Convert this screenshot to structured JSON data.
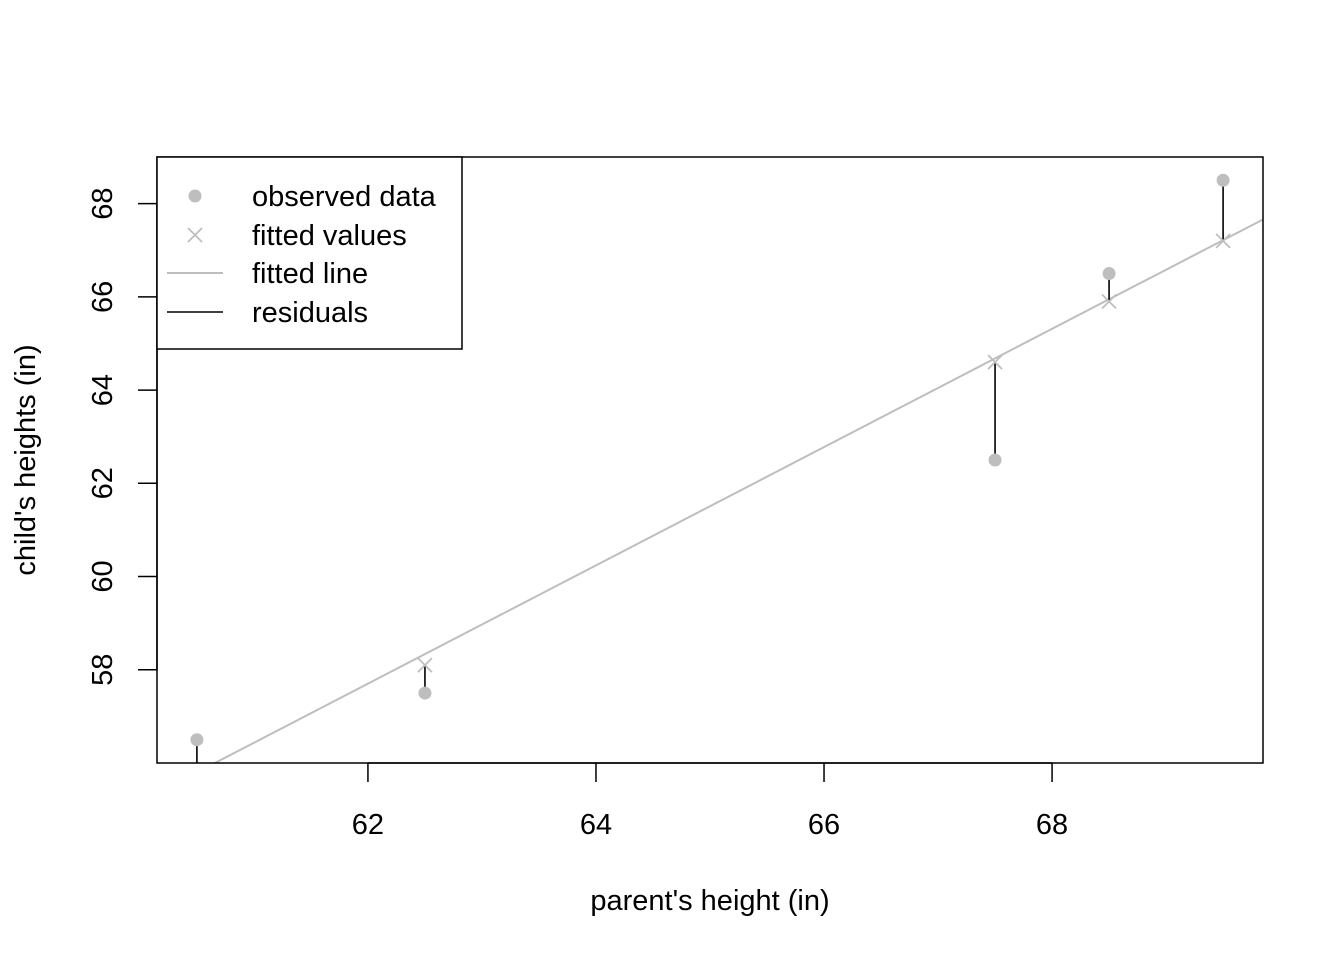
{
  "chart_data": {
    "type": "scatter",
    "title": "",
    "xlabel": "parent's height (in)",
    "ylabel": "child's heights (in)",
    "xlim": [
      60.15,
      69.85
    ],
    "ylim": [
      56.0,
      69.0
    ],
    "x_ticks": [
      62,
      64,
      66,
      68
    ],
    "y_ticks": [
      58,
      60,
      62,
      64,
      66,
      68
    ],
    "x_tick_labels": [
      "62",
      "64",
      "66",
      "68"
    ],
    "y_tick_labels": [
      "58",
      "60",
      "62",
      "64",
      "66",
      "68"
    ],
    "grid": false,
    "legend_position": "top-left",
    "colors": {
      "points": "#bebebe",
      "fitted_line": "#bebebe",
      "residuals": "#000000",
      "axes": "#000000"
    },
    "series": [
      {
        "name": "observed data",
        "kind": "points",
        "x": [
          60.5,
          62.5,
          67.5,
          68.5,
          69.5
        ],
        "y": [
          56.5,
          57.5,
          62.5,
          66.5,
          68.5
        ]
      },
      {
        "name": "fitted values",
        "kind": "crosses",
        "x": [
          60.5,
          62.5,
          67.5,
          68.5,
          69.5
        ],
        "y": [
          55.8,
          58.1,
          64.6,
          65.9,
          67.2
        ]
      },
      {
        "name": "fitted line",
        "kind": "line",
        "x": [
          60.5,
          69.85
        ],
        "y": [
          55.8,
          67.66
        ]
      },
      {
        "name": "residuals",
        "kind": "segments"
      }
    ],
    "legend": [
      {
        "label": "observed data",
        "symbol": "point"
      },
      {
        "label": "fitted values",
        "symbol": "cross"
      },
      {
        "label": "fitted line",
        "symbol": "gray-line"
      },
      {
        "label": "residuals",
        "symbol": "black-line"
      }
    ]
  }
}
